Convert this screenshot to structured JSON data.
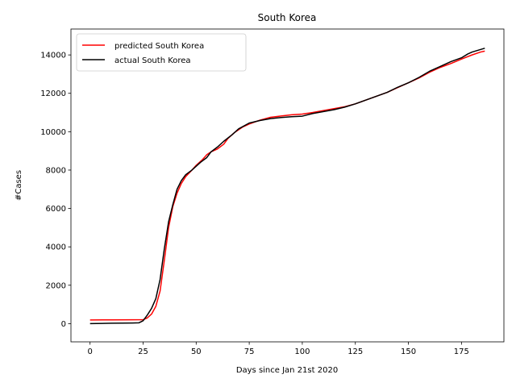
{
  "chart_data": {
    "type": "line",
    "title": "South Korea",
    "xlabel": "Days since Jan 21st 2020",
    "ylabel": "#Cases",
    "xlim": [
      -9,
      195
    ],
    "ylim": [
      -950,
      15350
    ],
    "xticks": [
      0,
      25,
      50,
      75,
      100,
      125,
      150,
      175
    ],
    "yticks": [
      0,
      2000,
      4000,
      6000,
      8000,
      10000,
      12000,
      14000
    ],
    "grid": false,
    "legend_position": "top-left",
    "series": [
      {
        "name": "predicted South Korea",
        "color": "#ff0000",
        "points": [
          [
            0,
            190
          ],
          [
            10,
            195
          ],
          [
            20,
            200
          ],
          [
            25,
            205
          ],
          [
            27,
            300
          ],
          [
            29,
            500
          ],
          [
            31,
            900
          ],
          [
            33,
            1700
          ],
          [
            35,
            3300
          ],
          [
            37,
            5000
          ],
          [
            39,
            6100
          ],
          [
            41,
            6800
          ],
          [
            43,
            7300
          ],
          [
            45,
            7650
          ],
          [
            48,
            8000
          ],
          [
            50,
            8250
          ],
          [
            53,
            8550
          ],
          [
            55,
            8800
          ],
          [
            57,
            8950
          ],
          [
            60,
            9100
          ],
          [
            63,
            9350
          ],
          [
            65,
            9650
          ],
          [
            68,
            9950
          ],
          [
            72,
            10250
          ],
          [
            75,
            10400
          ],
          [
            80,
            10600
          ],
          [
            85,
            10750
          ],
          [
            90,
            10820
          ],
          [
            95,
            10880
          ],
          [
            100,
            10920
          ],
          [
            105,
            11000
          ],
          [
            110,
            11100
          ],
          [
            115,
            11200
          ],
          [
            120,
            11300
          ],
          [
            125,
            11450
          ],
          [
            130,
            11650
          ],
          [
            135,
            11850
          ],
          [
            140,
            12050
          ],
          [
            145,
            12300
          ],
          [
            150,
            12550
          ],
          [
            155,
            12800
          ],
          [
            160,
            13100
          ],
          [
            165,
            13350
          ],
          [
            170,
            13550
          ],
          [
            175,
            13780
          ],
          [
            180,
            14000
          ],
          [
            184,
            14150
          ],
          [
            186,
            14200
          ]
        ]
      },
      {
        "name": "actual South Korea",
        "color": "#000000",
        "points": [
          [
            0,
            0
          ],
          [
            10,
            20
          ],
          [
            20,
            30
          ],
          [
            23,
            40
          ],
          [
            25,
            150
          ],
          [
            27,
            450
          ],
          [
            29,
            800
          ],
          [
            31,
            1300
          ],
          [
            33,
            2300
          ],
          [
            35,
            3900
          ],
          [
            37,
            5300
          ],
          [
            39,
            6200
          ],
          [
            41,
            7000
          ],
          [
            43,
            7450
          ],
          [
            45,
            7750
          ],
          [
            48,
            8000
          ],
          [
            50,
            8200
          ],
          [
            52,
            8400
          ],
          [
            55,
            8650
          ],
          [
            57,
            8950
          ],
          [
            60,
            9200
          ],
          [
            63,
            9500
          ],
          [
            67,
            9850
          ],
          [
            70,
            10150
          ],
          [
            75,
            10450
          ],
          [
            80,
            10580
          ],
          [
            85,
            10680
          ],
          [
            90,
            10740
          ],
          [
            95,
            10780
          ],
          [
            100,
            10810
          ],
          [
            105,
            10950
          ],
          [
            110,
            11050
          ],
          [
            115,
            11150
          ],
          [
            120,
            11280
          ],
          [
            125,
            11450
          ],
          [
            130,
            11650
          ],
          [
            135,
            11850
          ],
          [
            140,
            12050
          ],
          [
            145,
            12320
          ],
          [
            150,
            12550
          ],
          [
            155,
            12830
          ],
          [
            160,
            13150
          ],
          [
            165,
            13400
          ],
          [
            170,
            13650
          ],
          [
            175,
            13850
          ],
          [
            178,
            14050
          ],
          [
            180,
            14150
          ],
          [
            183,
            14250
          ],
          [
            186,
            14350
          ]
        ]
      }
    ]
  }
}
